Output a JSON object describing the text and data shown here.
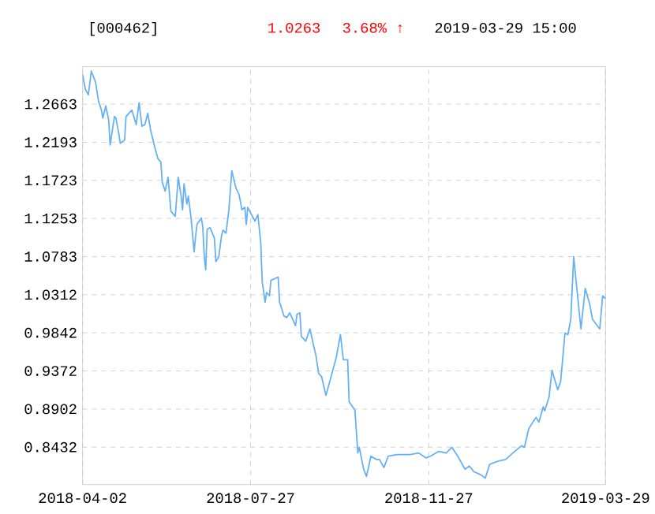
{
  "chart_data": {
    "type": "line",
    "title": "[000462]",
    "annotations": [
      "1.0263",
      "3.68% ↑",
      "2019-03-29 15:00"
    ],
    "color": "#66b0f5",
    "grid": true,
    "xlim": [
      "2018-04-02",
      "2019-03-29"
    ],
    "xticks": [
      "2018-04-02",
      "2018-07-27",
      "2018-11-27",
      "2019-03-29"
    ],
    "ylim": [
      0.797,
      1.3125
    ],
    "yticks": [
      1.2663,
      1.2193,
      1.1723,
      1.1253,
      1.0783,
      1.0312,
      0.9842,
      0.9372,
      0.8902,
      0.8432
    ],
    "x": [
      "2018-04-02",
      "2018-04-04",
      "2018-04-06",
      "2018-04-08",
      "2018-04-11",
      "2018-04-13",
      "2018-04-15",
      "2018-04-16",
      "2018-04-18",
      "2018-04-20",
      "2018-04-21",
      "2018-04-24",
      "2018-04-25",
      "2018-04-27",
      "2018-04-28",
      "2018-05-01",
      "2018-05-02",
      "2018-05-06",
      "2018-05-09",
      "2018-05-11",
      "2018-05-13",
      "2018-05-15",
      "2018-05-17",
      "2018-05-19",
      "2018-05-22",
      "2018-05-24",
      "2018-05-26",
      "2018-05-27",
      "2018-05-29",
      "2018-05-31",
      "2018-06-02",
      "2018-06-05",
      "2018-06-07",
      "2018-06-09",
      "2018-06-10",
      "2018-06-11",
      "2018-06-13",
      "2018-06-14",
      "2018-06-16",
      "2018-06-18",
      "2018-06-19",
      "2018-06-20",
      "2018-06-23",
      "2018-06-24",
      "2018-06-25",
      "2018-06-26",
      "2018-06-27",
      "2018-06-29",
      "2018-07-02",
      "2018-07-03",
      "2018-07-05",
      "2018-07-07",
      "2018-07-08",
      "2018-07-10",
      "2018-07-12",
      "2018-07-14",
      "2018-07-17",
      "2018-07-19",
      "2018-07-21",
      "2018-07-23",
      "2018-07-24",
      "2018-07-25",
      "2018-07-27",
      "2018-07-30",
      "2018-08-01",
      "2018-08-03",
      "2018-08-04",
      "2018-08-06",
      "2018-08-07",
      "2018-08-09",
      "2018-08-10",
      "2018-08-15",
      "2018-08-16",
      "2018-08-19",
      "2018-08-21",
      "2018-08-23",
      "2018-08-27",
      "2018-08-28",
      "2018-08-30",
      "2018-08-31",
      "2018-09-03",
      "2018-09-06",
      "2018-09-08",
      "2018-09-10",
      "2018-09-12",
      "2018-09-14",
      "2018-09-17",
      "2018-09-24",
      "2018-09-27",
      "2018-09-29",
      "2018-10-02",
      "2018-10-03",
      "2018-10-07",
      "2018-10-09",
      "2018-10-10",
      "2018-10-13",
      "2018-10-15",
      "2018-10-18",
      "2018-10-22",
      "2018-10-24",
      "2018-10-27",
      "2018-10-30",
      "2018-11-05",
      "2018-11-14",
      "2018-11-20",
      "2018-11-25",
      "2018-11-28",
      "2018-12-04",
      "2018-12-09",
      "2018-12-13",
      "2018-12-17",
      "2018-12-22",
      "2018-12-25",
      "2018-12-28",
      "2019-01-02",
      "2019-01-05",
      "2019-01-08",
      "2019-01-14",
      "2019-01-19",
      "2019-01-24",
      "2019-01-30",
      "2019-02-01",
      "2019-02-04",
      "2019-02-09",
      "2019-02-11",
      "2019-02-14",
      "2019-02-15",
      "2019-02-18",
      "2019-02-20",
      "2019-02-24",
      "2019-02-26",
      "2019-03-01",
      "2019-03-03",
      "2019-03-05",
      "2019-03-07",
      "2019-03-12",
      "2019-03-15",
      "2019-03-18",
      "2019-03-20",
      "2019-03-25",
      "2019-03-27",
      "2019-03-29"
    ],
    "values": [
      1.303,
      1.284,
      1.278,
      1.307,
      1.293,
      1.27,
      1.259,
      1.249,
      1.264,
      1.247,
      1.216,
      1.251,
      1.249,
      1.23,
      1.218,
      1.222,
      1.251,
      1.259,
      1.241,
      1.268,
      1.239,
      1.241,
      1.255,
      1.234,
      1.212,
      1.199,
      1.195,
      1.17,
      1.159,
      1.176,
      1.134,
      1.128,
      1.176,
      1.153,
      1.136,
      1.168,
      1.143,
      1.153,
      1.124,
      1.084,
      1.103,
      1.118,
      1.126,
      1.114,
      1.078,
      1.062,
      1.112,
      1.114,
      1.101,
      1.072,
      1.078,
      1.105,
      1.111,
      1.107,
      1.136,
      1.184,
      1.162,
      1.155,
      1.136,
      1.139,
      1.118,
      1.139,
      1.132,
      1.122,
      1.13,
      1.095,
      1.047,
      1.022,
      1.034,
      1.03,
      1.049,
      1.053,
      1.022,
      1.005,
      1.003,
      1.009,
      0.993,
      1.007,
      1.009,
      0.98,
      0.974,
      0.989,
      0.972,
      0.957,
      0.934,
      0.93,
      0.907,
      0.953,
      0.982,
      0.951,
      0.951,
      0.899,
      0.889,
      0.836,
      0.843,
      0.816,
      0.807,
      0.832,
      0.828,
      0.828,
      0.818,
      0.832,
      0.834,
      0.834,
      0.836,
      0.83,
      0.832,
      0.838,
      0.836,
      0.843,
      0.832,
      0.816,
      0.82,
      0.813,
      0.809,
      0.805,
      0.822,
      0.826,
      0.828,
      0.836,
      0.845,
      0.843,
      0.866,
      0.88,
      0.874,
      0.893,
      0.888,
      0.905,
      0.938,
      0.914,
      0.924,
      0.984,
      0.982,
      1.001,
      1.078,
      0.989,
      1.039,
      1.02,
      1.001,
      0.989,
      1.03,
      1.0263
    ]
  }
}
